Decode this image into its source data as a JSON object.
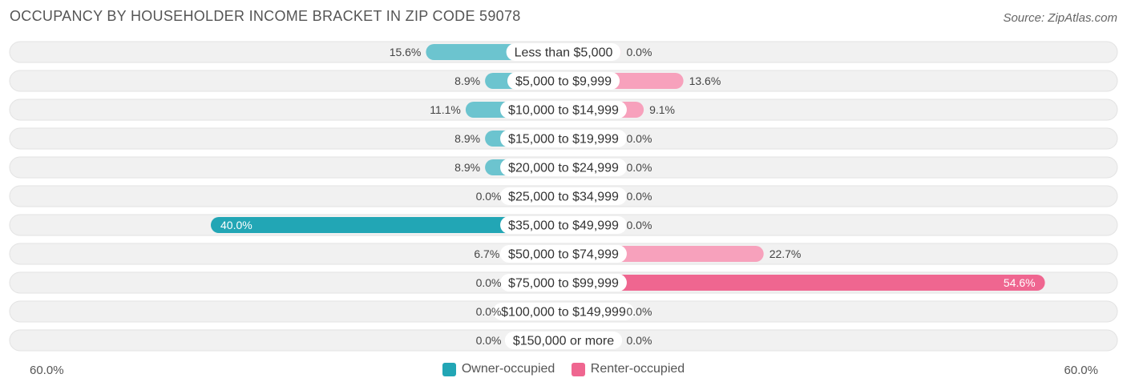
{
  "title": "OCCUPANCY BY HOUSEHOLDER INCOME BRACKET IN ZIP CODE 59078",
  "source": "Source: ZipAtlas.com",
  "colors": {
    "owner": "#6cc4cf",
    "owner_strong": "#22a6b5",
    "renter": "#f7a1bc",
    "renter_strong": "#ef6690",
    "row_bg": "#efefef"
  },
  "chart_data": {
    "type": "bar",
    "orientation": "horizontal-diverging",
    "categories": [
      "Less than $5,000",
      "$5,000 to $9,999",
      "$10,000 to $14,999",
      "$15,000 to $19,999",
      "$20,000 to $24,999",
      "$25,000 to $34,999",
      "$35,000 to $49,999",
      "$50,000 to $74,999",
      "$75,000 to $99,999",
      "$100,000 to $149,999",
      "$150,000 or more"
    ],
    "series": [
      {
        "name": "Owner-occupied",
        "values": [
          15.6,
          8.9,
          11.1,
          8.9,
          8.9,
          0.0,
          40.0,
          6.7,
          0.0,
          0.0,
          0.0
        ],
        "labels": [
          "15.6%",
          "8.9%",
          "11.1%",
          "8.9%",
          "8.9%",
          "0.0%",
          "40.0%",
          "6.7%",
          "0.0%",
          "0.0%",
          "0.0%"
        ]
      },
      {
        "name": "Renter-occupied",
        "values": [
          0.0,
          13.6,
          9.1,
          0.0,
          0.0,
          0.0,
          0.0,
          22.7,
          54.6,
          0.0,
          0.0
        ],
        "labels": [
          "0.0%",
          "13.6%",
          "9.1%",
          "0.0%",
          "0.0%",
          "0.0%",
          "0.0%",
          "22.7%",
          "54.6%",
          "0.0%",
          "0.0%"
        ]
      }
    ],
    "xlim": [
      -60,
      60
    ],
    "axis_min_label": "60.0%",
    "axis_max_label": "60.0%",
    "legend_position": "bottom-center"
  }
}
